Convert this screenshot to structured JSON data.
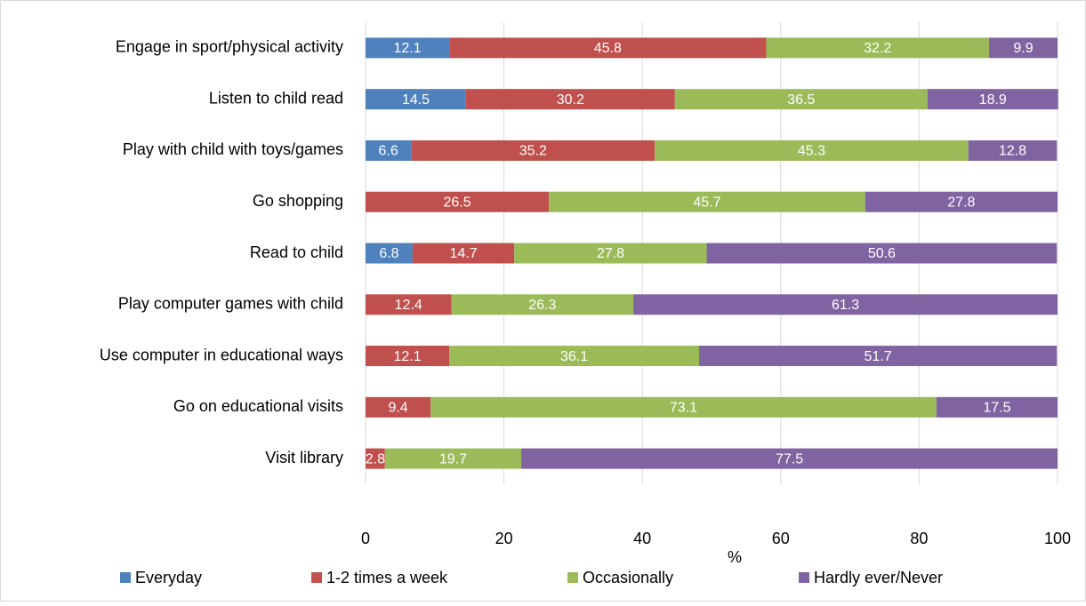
{
  "chart_data": {
    "type": "stacked-barh",
    "categories": [
      "Engage in sport/physical activity",
      "Listen to child read",
      "Play with child with toys/games",
      "Go shopping",
      "Read to child",
      "Play computer games with child",
      "Use computer in educational ways",
      "Go on educational visits",
      "Visit library"
    ],
    "series": [
      {
        "name": "Everyday",
        "color": "#4f81bd",
        "values": [
          12.1,
          14.5,
          6.6,
          null,
          6.8,
          null,
          null,
          null,
          null
        ]
      },
      {
        "name": "1-2 times a week",
        "color": "#c0504d",
        "values": [
          45.8,
          30.2,
          35.2,
          26.5,
          14.7,
          12.4,
          12.1,
          9.4,
          2.8
        ]
      },
      {
        "name": "Occasionally",
        "color": "#9bbb59",
        "values": [
          32.2,
          36.5,
          45.3,
          45.7,
          27.8,
          26.3,
          36.1,
          73.1,
          19.7
        ]
      },
      {
        "name": "Hardly ever/Never",
        "color": "#8064a2",
        "values": [
          9.9,
          18.9,
          12.8,
          27.8,
          50.6,
          61.3,
          51.7,
          17.5,
          77.5
        ]
      }
    ],
    "x_label": "%",
    "xlim": [
      0,
      100
    ],
    "xticks": [
      0,
      20,
      40,
      60,
      80,
      100
    ],
    "grid": true,
    "legend": "bottom"
  }
}
